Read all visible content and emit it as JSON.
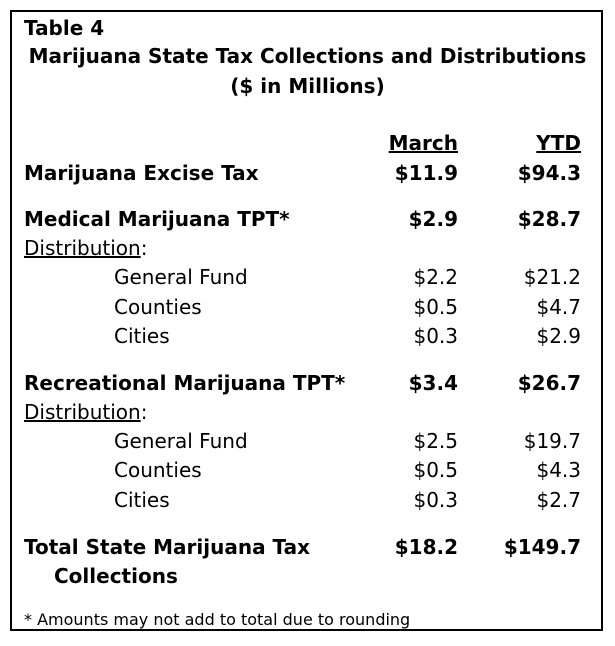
{
  "table": {
    "number": "Table 4",
    "title": "Marijuana State Tax Collections and Distributions",
    "subtitle": "($ in Millions)",
    "col_headers": {
      "march": "March",
      "ytd": "YTD"
    },
    "excise": {
      "label": "Marijuana Excise Tax",
      "march": "$11.9",
      "ytd": "$94.3"
    },
    "medical": {
      "label": "Medical Marijuana TPT*",
      "march": "$2.9",
      "ytd": "$28.7",
      "dist_label": "Distribution",
      "rows": [
        {
          "label": "General Fund",
          "march": "$2.2",
          "ytd": "$21.2"
        },
        {
          "label": "Counties",
          "march": "$0.5",
          "ytd": "$4.7"
        },
        {
          "label": "Cities",
          "march": "$0.3",
          "ytd": "$2.9"
        }
      ]
    },
    "recreational": {
      "label": "Recreational Marijuana TPT*",
      "march": "$3.4",
      "ytd": "$26.7",
      "dist_label": "Distribution",
      "rows": [
        {
          "label": "General Fund",
          "march": "$2.5",
          "ytd": "$19.7"
        },
        {
          "label": "Counties",
          "march": "$0.5",
          "ytd": "$4.3"
        },
        {
          "label": "Cities",
          "march": "$0.3",
          "ytd": "$2.7"
        }
      ]
    },
    "total": {
      "label_line1": "Total State Marijuana Tax",
      "label_line2": "Collections",
      "march": "$18.2",
      "ytd": "$149.7"
    },
    "footnote": "* Amounts may not add to total due to rounding"
  }
}
